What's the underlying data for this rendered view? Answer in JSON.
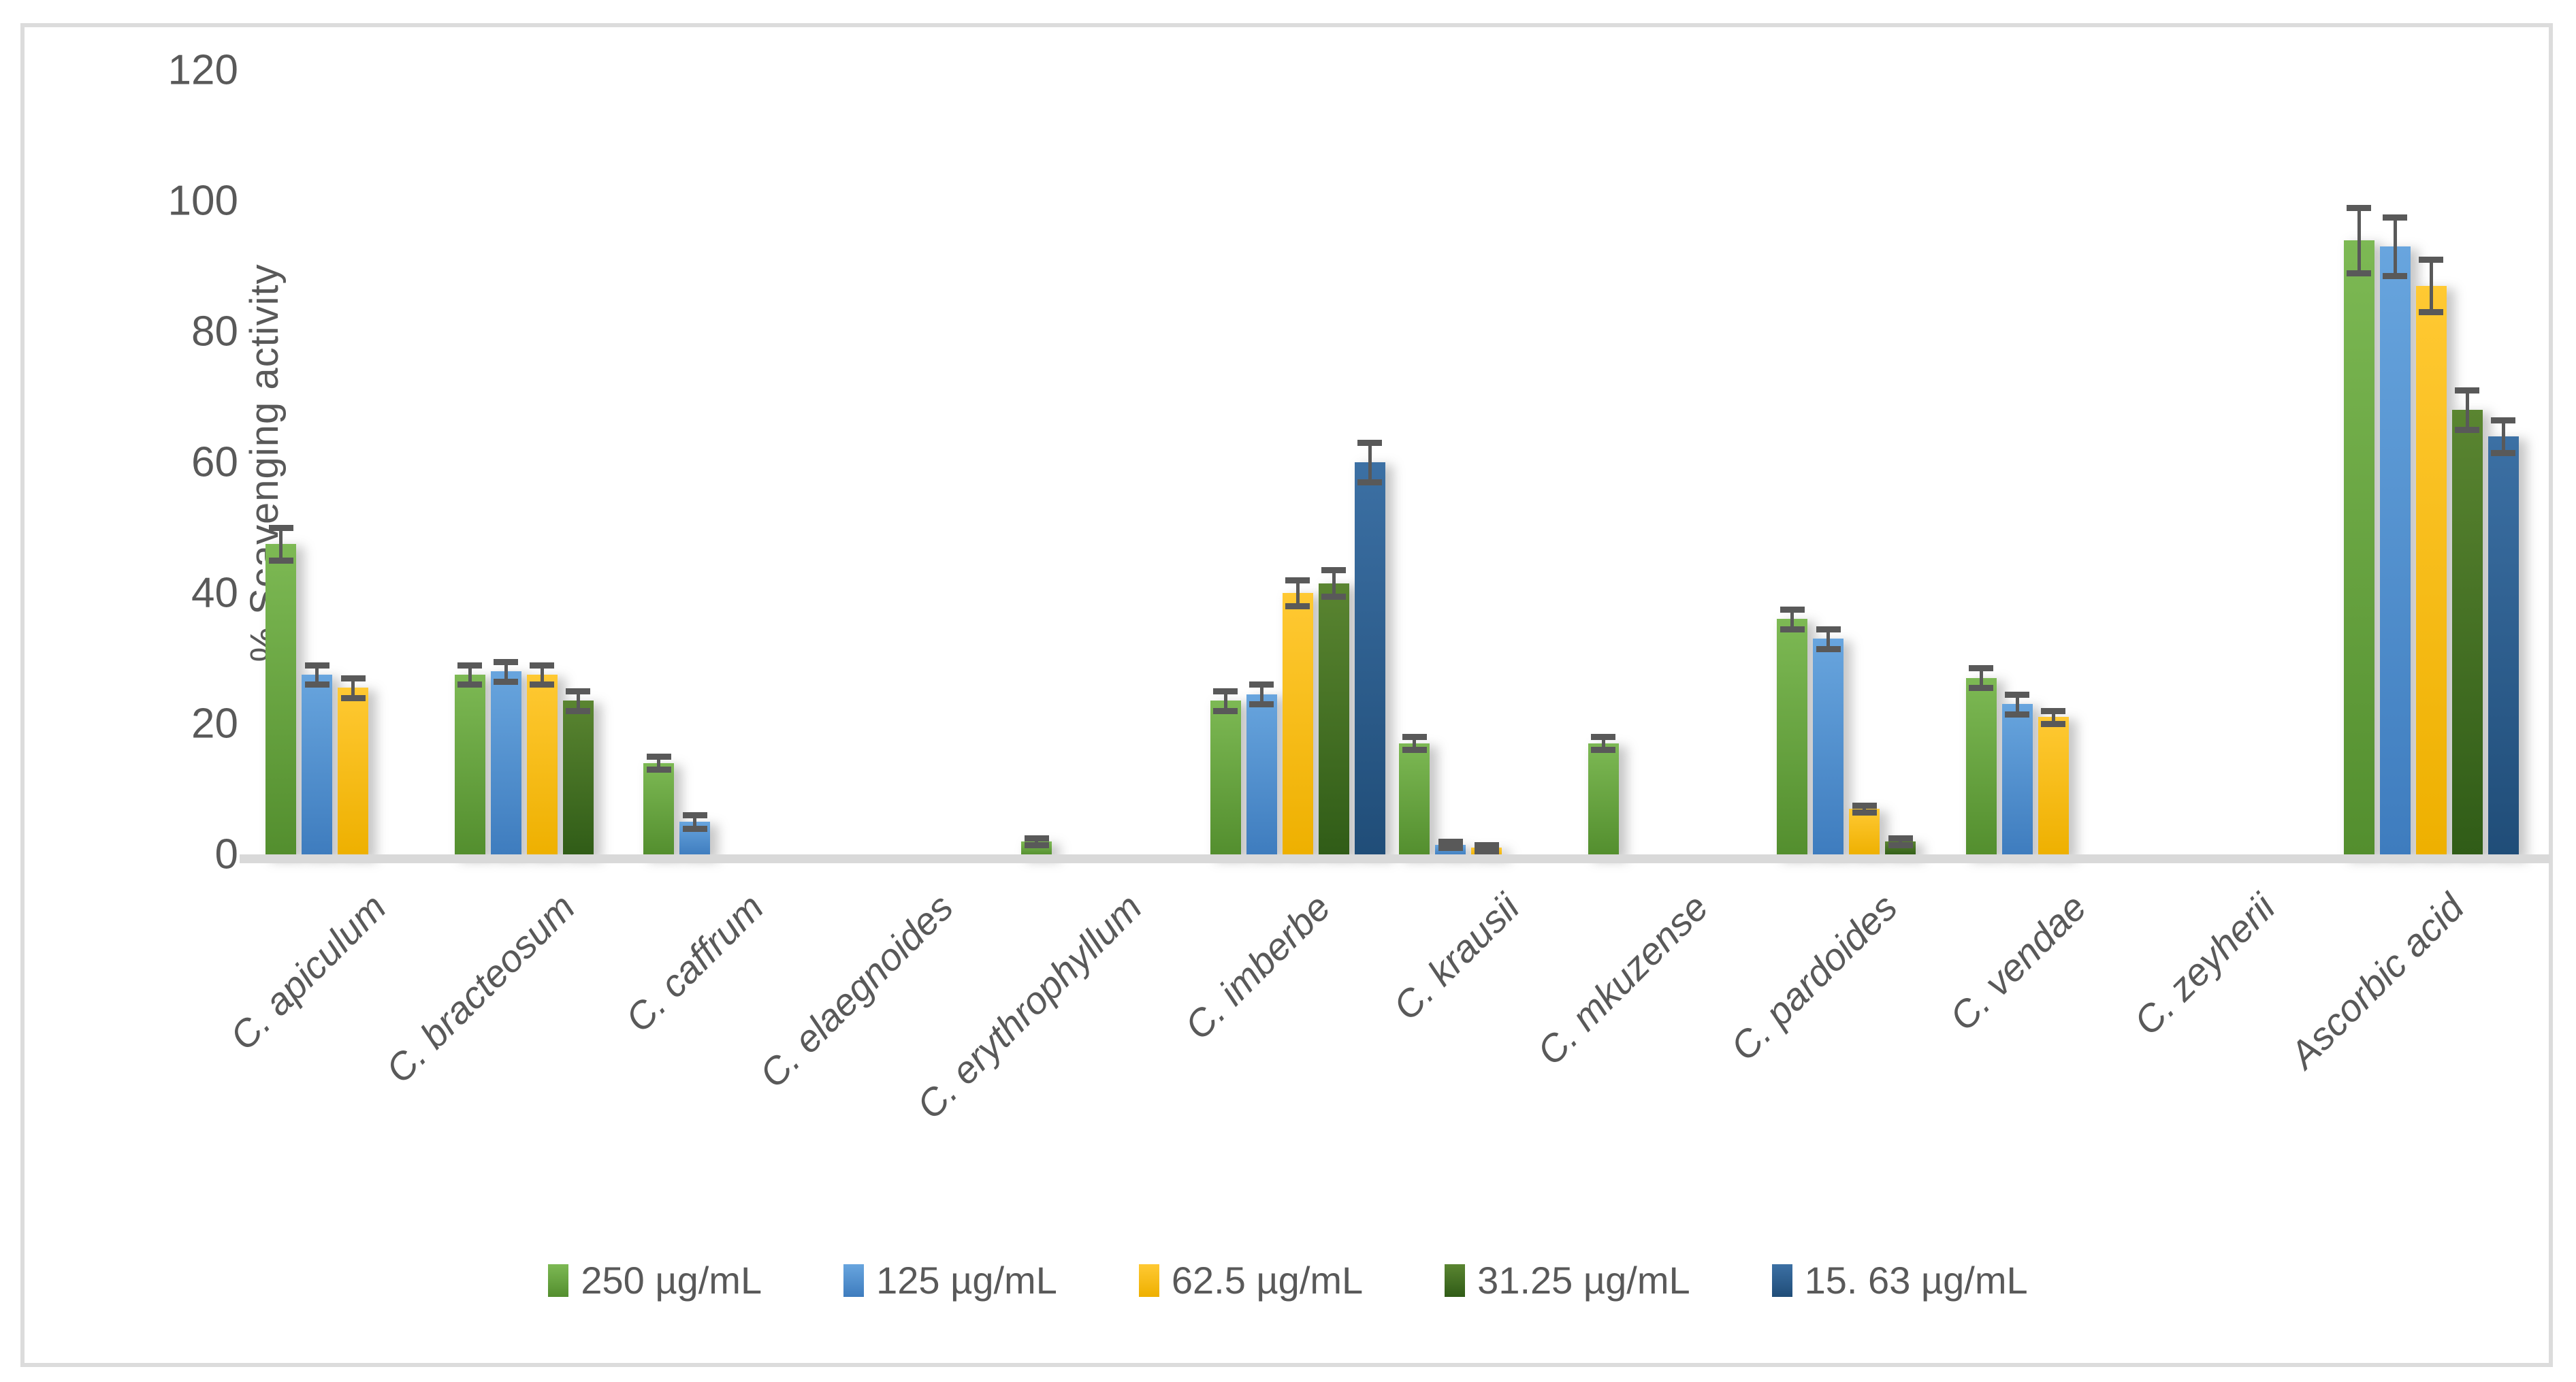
{
  "figure": {
    "background": "#ffffff",
    "border_color": "#dcdcdc",
    "text_color": "#595959",
    "baseline_color": "#d9d9d9",
    "error_bar_color": "#595959"
  },
  "chart_data": {
    "type": "bar",
    "title": "",
    "xlabel": "",
    "ylabel": "% Scavenging activity",
    "ylim": [
      0,
      120
    ],
    "yticks": [
      0,
      20,
      40,
      60,
      80,
      100,
      120
    ],
    "grid": false,
    "legend_position": "bottom",
    "categories": [
      "C. apiculum",
      "C. bracteosum",
      "C. caffrum",
      "C. elaegnoides",
      "C. erythrophyllum",
      "C. imberbe",
      "C. krausii",
      "C. mkuzense",
      "C. pardoides",
      "C. vendae",
      "C. zeyherii",
      "Ascorbic acid"
    ],
    "series": [
      {
        "name": "250 µg/mL",
        "color": "#70AD47",
        "gradient": [
          "#7db954",
          "#538e2e"
        ],
        "values": [
          47.5,
          27.5,
          14,
          0,
          2,
          23.5,
          17,
          17,
          36,
          27,
          0,
          94
        ],
        "errors": [
          2.5,
          1.5,
          1,
          0,
          0.5,
          1.5,
          1,
          1,
          1.5,
          1.5,
          0,
          5
        ]
      },
      {
        "name": "125 µg/mL",
        "color": "#5B9BD5",
        "gradient": [
          "#68a5de",
          "#3e7cbe"
        ],
        "values": [
          27.5,
          28,
          5,
          0,
          0,
          24.5,
          1.5,
          0,
          33,
          23,
          0,
          93
        ],
        "errors": [
          1.5,
          1.5,
          1,
          0,
          0,
          1.5,
          0.5,
          0,
          1.5,
          1.5,
          0,
          4.5
        ]
      },
      {
        "name": "62.5  µg/mL",
        "color": "#FFC000",
        "gradient": [
          "#ffc933",
          "#eeb000"
        ],
        "values": [
          25.5,
          27.5,
          0,
          0,
          0,
          40,
          1,
          0,
          7,
          21,
          0,
          87
        ],
        "errors": [
          1.5,
          1.5,
          0,
          0,
          0,
          2,
          0.5,
          0,
          0.5,
          1,
          0,
          4
        ]
      },
      {
        "name": "31.25  µg/mL",
        "color": "#548235",
        "gradient": [
          "#5a8531",
          "#305c17"
        ],
        "values": [
          0,
          23.5,
          0,
          0,
          0,
          41.5,
          0,
          0,
          2,
          0,
          0,
          68
        ],
        "errors": [
          0,
          1.5,
          0,
          0,
          0,
          2,
          0,
          0,
          0.5,
          0,
          0,
          3
        ]
      },
      {
        "name": "15. 63  µg/mL",
        "color": "#2E5E8E",
        "gradient": [
          "#3c70a4",
          "#204d78"
        ],
        "values": [
          0,
          0,
          0,
          0,
          0,
          60,
          0,
          0,
          0,
          0,
          0,
          64
        ],
        "errors": [
          0,
          0,
          0,
          0,
          0,
          3,
          0,
          0,
          0,
          0,
          0,
          2.5
        ]
      }
    ]
  }
}
